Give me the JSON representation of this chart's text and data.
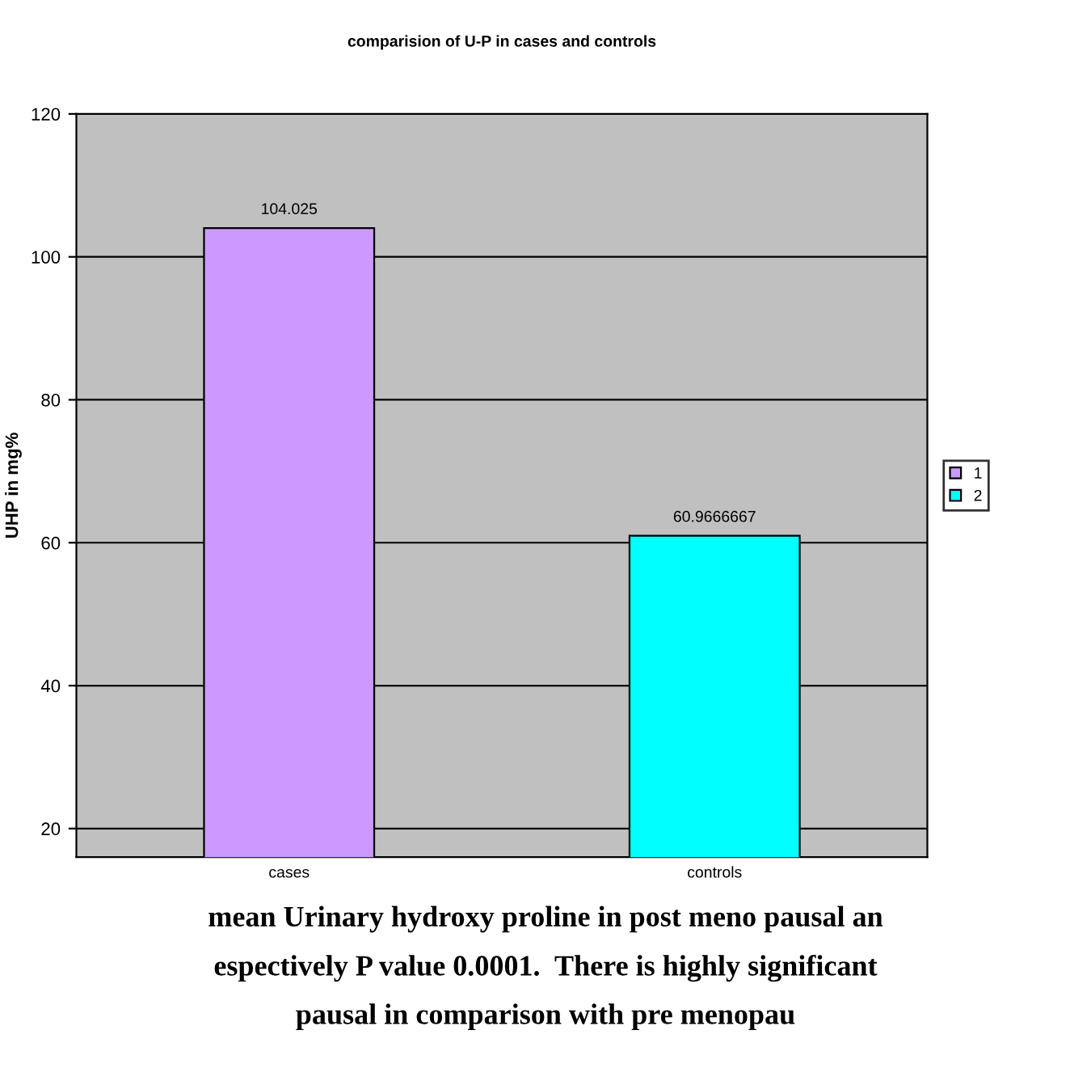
{
  "chart_data": {
    "type": "bar",
    "title": "comparision of U-P in cases and controls",
    "ylabel": "UHP in mg%",
    "categories": [
      "cases",
      "controls"
    ],
    "series": [
      {
        "name": "1",
        "color": "#cc99ff",
        "values": [
          104.025,
          null
        ]
      },
      {
        "name": "2",
        "color": "#00ffff",
        "values": [
          null,
          60.9666667
        ]
      }
    ],
    "ylim": [
      16,
      120
    ],
    "yticks": [
      20,
      40,
      60,
      80,
      100,
      120
    ],
    "grid": "y",
    "legend": "right",
    "data_labels": true,
    "annotations": [
      "mean Urinary hydroxy proline in post meno pausal an",
      "espectively P value 0.0001.  There is highly significant",
      "pausal in comparison with pre menopau"
    ]
  }
}
